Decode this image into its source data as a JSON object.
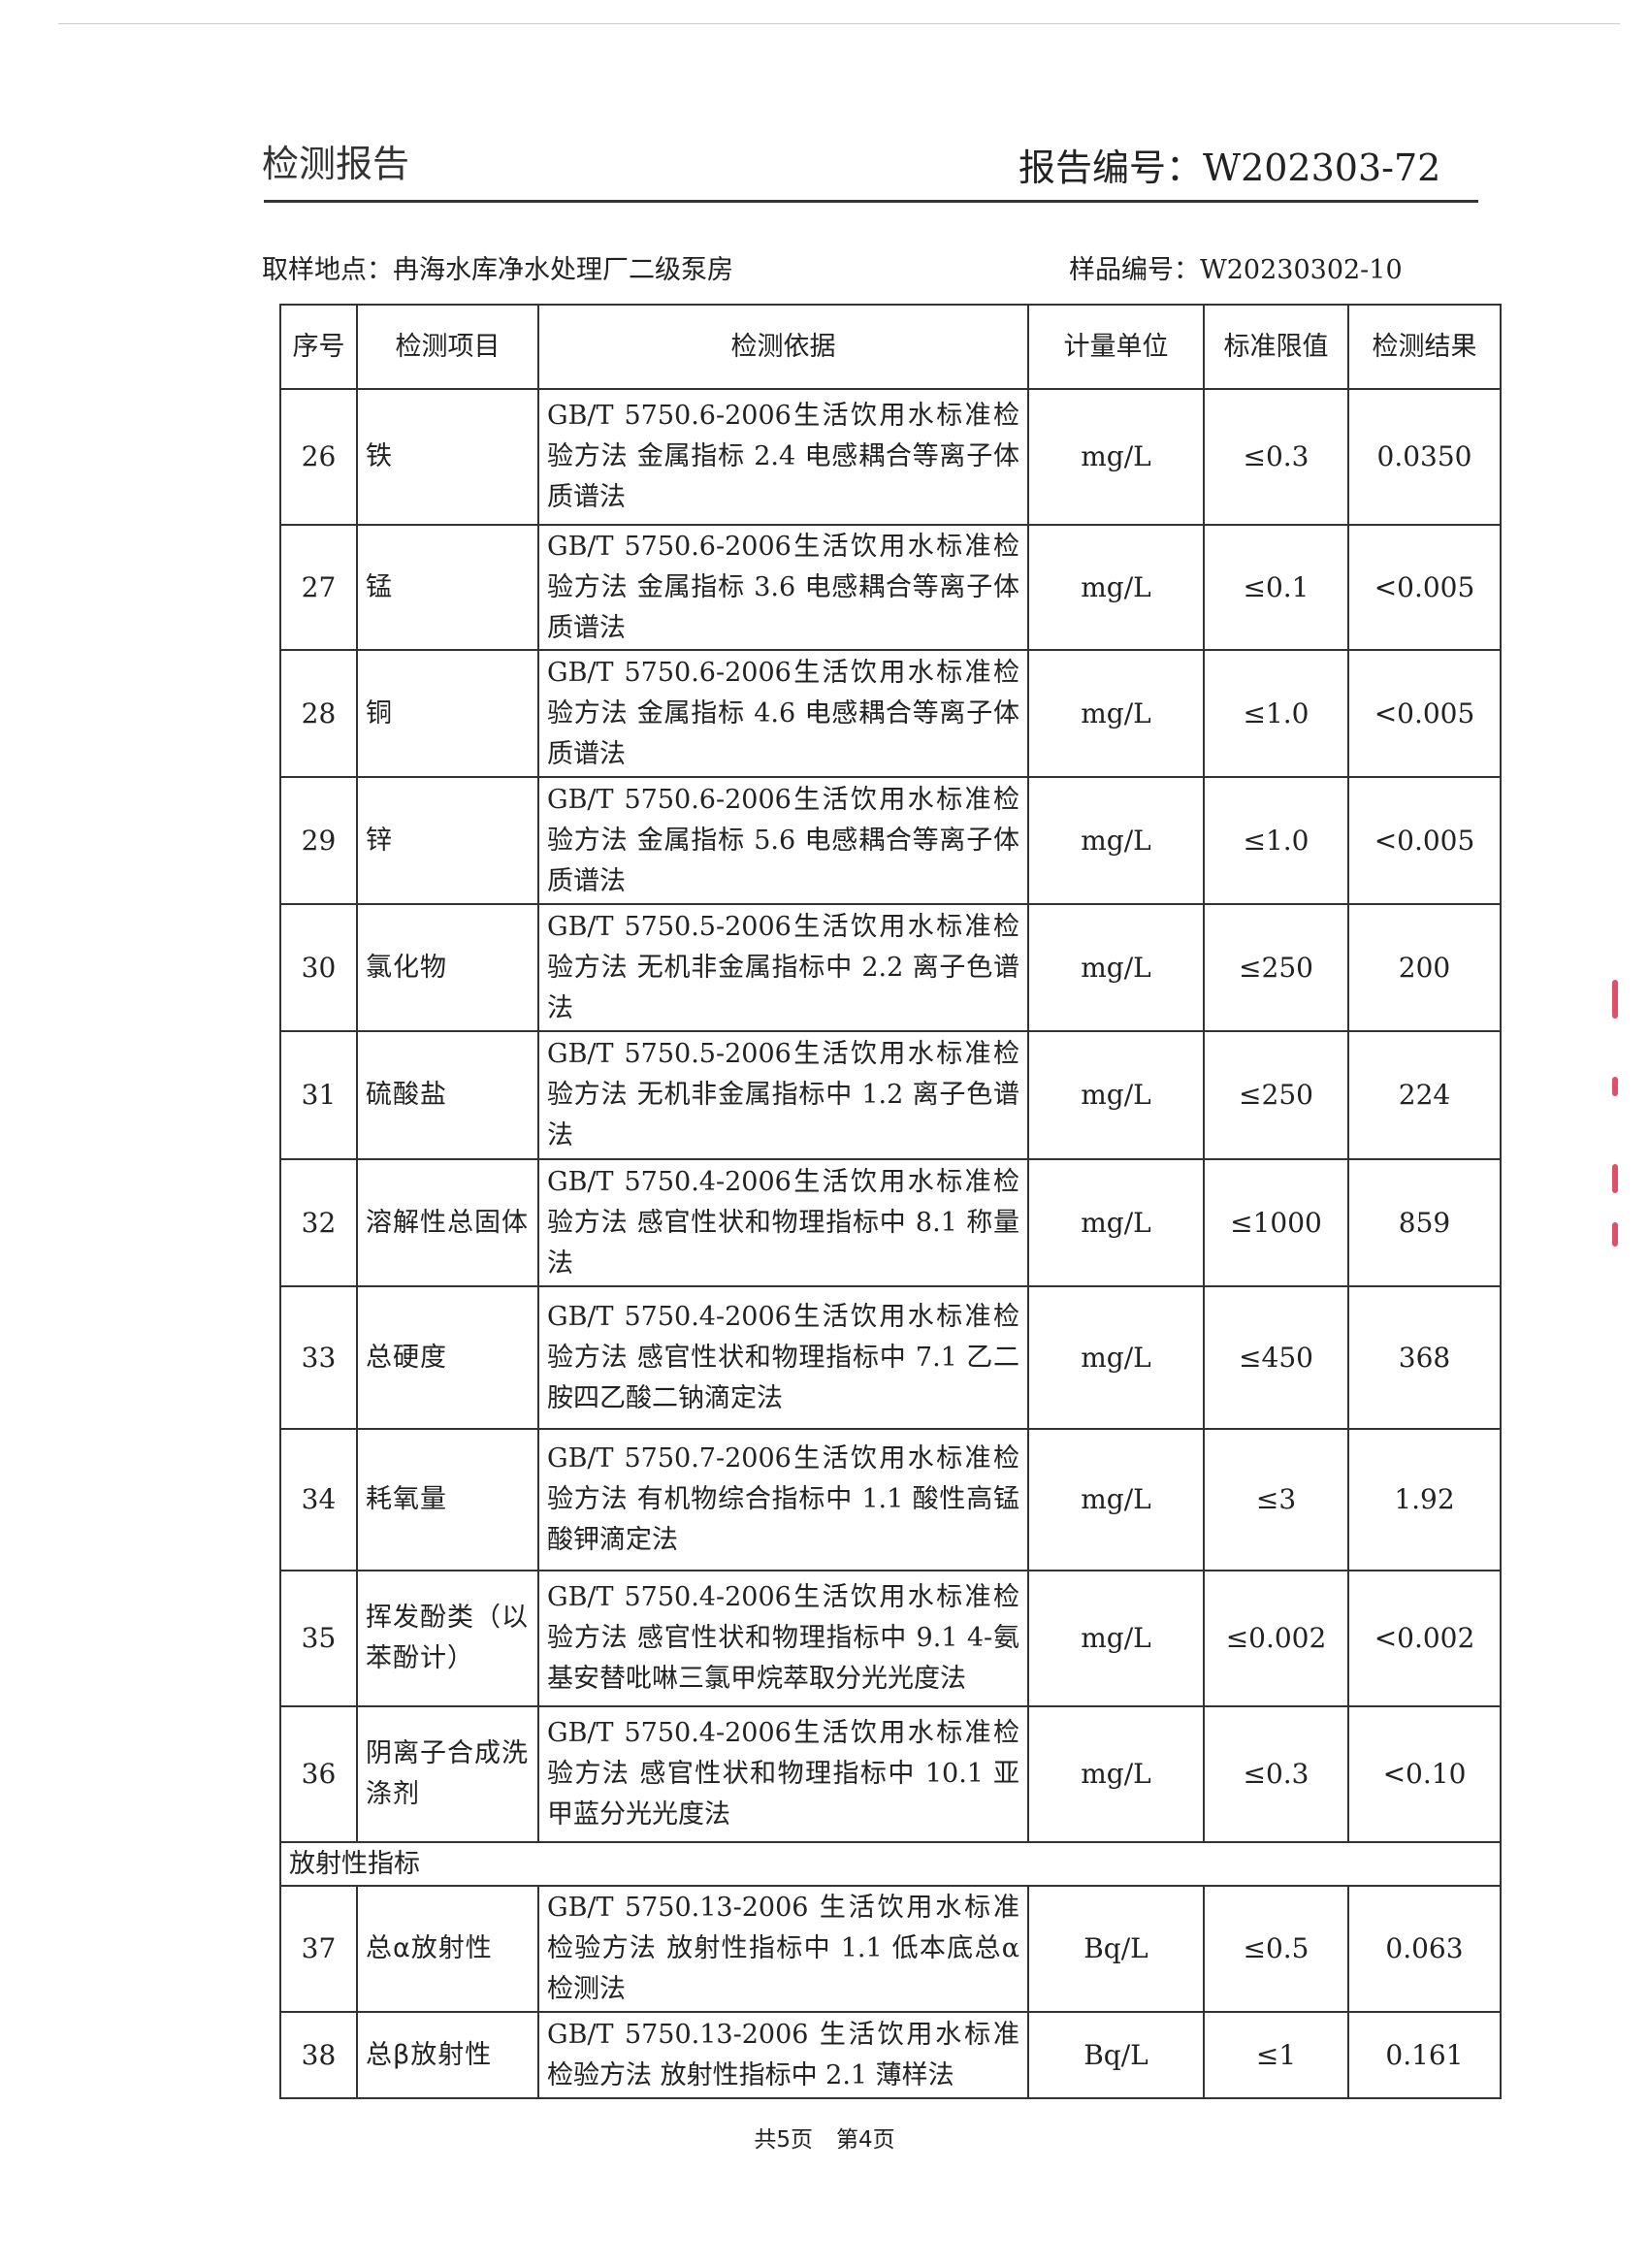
{
  "header": {
    "title": "检测报告",
    "report_no_label": "报告编号：",
    "report_no": "W202303-72"
  },
  "sample": {
    "location_label": "取样地点：",
    "location": "冉海水库净水处理厂二级泵房",
    "sample_no_label": "样品编号：",
    "sample_no": "W20230302-10"
  },
  "table": {
    "columns": [
      "序号",
      "检测项目",
      "检测依据",
      "计量单位",
      "标准限值",
      "检测结果"
    ],
    "rows": [
      {
        "no": "26",
        "item": "铁",
        "basis": "GB/T 5750.6-2006生活饮用水标准检验方法 金属指标 2.4 电感耦合等离子体质谱法",
        "unit": "mg/L",
        "limit": "≤0.3",
        "result": "0.0350"
      },
      {
        "no": "27",
        "item": "锰",
        "basis": "GB/T 5750.6-2006生活饮用水标准检验方法 金属指标 3.6 电感耦合等离子体质谱法",
        "unit": "mg/L",
        "limit": "≤0.1",
        "result": "<0.005"
      },
      {
        "no": "28",
        "item": "铜",
        "basis": "GB/T 5750.6-2006生活饮用水标准检验方法 金属指标 4.6 电感耦合等离子体质谱法",
        "unit": "mg/L",
        "limit": "≤1.0",
        "result": "<0.005"
      },
      {
        "no": "29",
        "item": "锌",
        "basis": "GB/T 5750.6-2006生活饮用水标准检验方法 金属指标 5.6 电感耦合等离子体质谱法",
        "unit": "mg/L",
        "limit": "≤1.0",
        "result": "<0.005"
      },
      {
        "no": "30",
        "item": "氯化物",
        "basis": "GB/T 5750.5-2006生活饮用水标准检验方法 无机非金属指标中 2.2 离子色谱法",
        "unit": "mg/L",
        "limit": "≤250",
        "result": "200"
      },
      {
        "no": "31",
        "item": "硫酸盐",
        "basis": "GB/T 5750.5-2006生活饮用水标准检验方法 无机非金属指标中 1.2 离子色谱法",
        "unit": "mg/L",
        "limit": "≤250",
        "result": "224"
      },
      {
        "no": "32",
        "item": "溶解性总固体",
        "basis": "GB/T 5750.4-2006生活饮用水标准检验方法 感官性状和物理指标中 8.1 称量法",
        "unit": "mg/L",
        "limit": "≤1000",
        "result": "859"
      },
      {
        "no": "33",
        "item": "总硬度",
        "basis": "GB/T 5750.4-2006生活饮用水标准检验方法 感官性状和物理指标中 7.1 乙二胺四乙酸二钠滴定法",
        "unit": "mg/L",
        "limit": "≤450",
        "result": "368"
      },
      {
        "no": "34",
        "item": "耗氧量",
        "basis": "GB/T 5750.7-2006生活饮用水标准检验方法 有机物综合指标中 1.1 酸性高锰酸钾滴定法",
        "unit": "mg/L",
        "limit": "≤3",
        "result": "1.92"
      },
      {
        "no": "35",
        "item": "挥发酚类（以苯酚计）",
        "basis": "GB/T 5750.4-2006生活饮用水标准检验方法 感官性状和物理指标中 9.1 4-氨基安替吡啉三氯甲烷萃取分光光度法",
        "unit": "mg/L",
        "limit": "≤0.002",
        "result": "<0.002"
      },
      {
        "no": "36",
        "item": "阴离子合成洗涤剂",
        "basis": "GB/T 5750.4-2006生活饮用水标准检验方法 感官性状和物理指标中 10.1 亚甲蓝分光光度法",
        "unit": "mg/L",
        "limit": "≤0.3",
        "result": "<0.10"
      },
      {
        "section": "放射性指标"
      },
      {
        "no": "37",
        "item": "总α放射性",
        "basis": "GB/T 5750.13-2006 生活饮用水标准检验方法 放射性指标中 1.1 低本底总α检测法",
        "unit": "Bq/L",
        "limit": "≤0.5",
        "result": "0.063"
      },
      {
        "no": "38",
        "item": "总β放射性",
        "basis": "GB/T 5750.13-2006 生活饮用水标准检验方法 放射性指标中 2.1 薄样法",
        "unit": "Bq/L",
        "limit": "≤1",
        "result": "0.161"
      }
    ]
  },
  "footer": {
    "total": "共5页",
    "current": "第4页"
  }
}
